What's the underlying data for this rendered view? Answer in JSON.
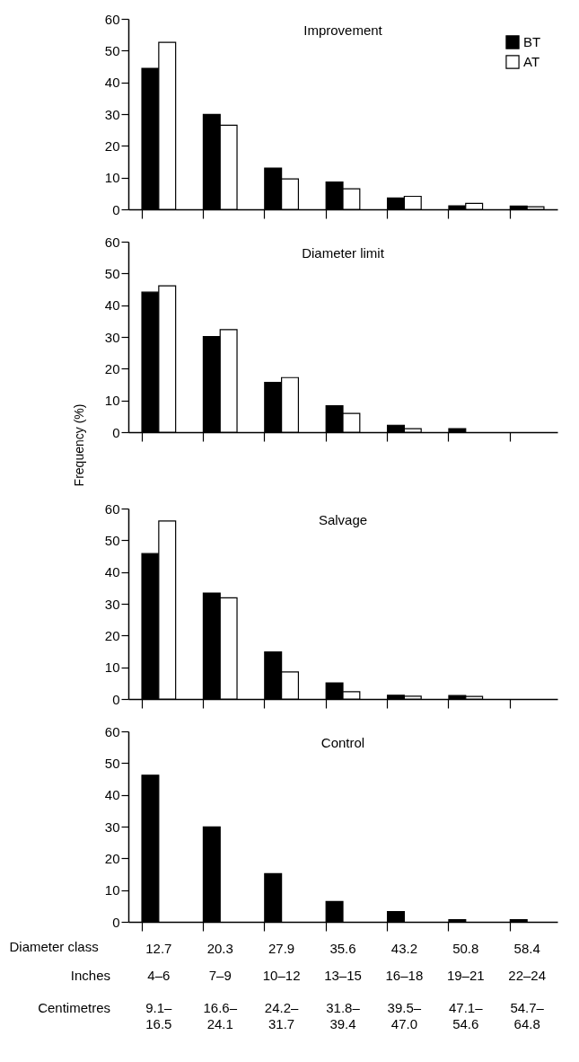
{
  "chart_data": [
    {
      "type": "bar",
      "title": "Improvement",
      "categories": [
        "12.7",
        "20.3",
        "27.9",
        "35.6",
        "43.2",
        "50.8",
        "58.4"
      ],
      "series": [
        {
          "name": "BT",
          "color": "#000000",
          "values": [
            44.4,
            29.9,
            13.0,
            8.6,
            3.6,
            1.1,
            1.0
          ]
        },
        {
          "name": "AT",
          "color": "#ffffff",
          "values": [
            52.6,
            26.5,
            9.6,
            6.5,
            4.1,
            1.9,
            0.8
          ]
        }
      ],
      "ylim": [
        0,
        60
      ],
      "yticks": [
        0,
        10,
        20,
        30,
        40,
        50,
        60
      ],
      "legend": "top right",
      "tick_labels": "y"
    },
    {
      "type": "bar",
      "title": "Diameter limit",
      "ylabel": "Frequency (%)",
      "categories": [
        "12.7",
        "20.3",
        "27.9",
        "35.6",
        "43.2",
        "50.8",
        "58.4"
      ],
      "series": [
        {
          "color": "#000000",
          "values": [
            44.1,
            30.1,
            15.7,
            8.3,
            2.2,
            1.1,
            null
          ]
        },
        {
          "color": "#ffffff",
          "values": [
            46.1,
            32.3,
            17.2,
            5.9,
            1.1,
            null,
            null
          ]
        }
      ],
      "ylim": [
        0,
        60
      ],
      "yticks": [
        0,
        10,
        20,
        30,
        40,
        50,
        60
      ],
      "tick_labels": "y"
    },
    {
      "type": "bar",
      "title": "Salvage",
      "categories": [
        "12.7",
        "20.3",
        "27.9",
        "35.6",
        "43.2",
        "50.8",
        "58.4"
      ],
      "series": [
        {
          "color": "#000000",
          "values": [
            45.8,
            33.4,
            14.8,
            5.1,
            1.2,
            1.1,
            null
          ]
        },
        {
          "color": "#ffffff",
          "values": [
            56.1,
            31.9,
            8.5,
            2.3,
            0.9,
            0.8,
            null
          ]
        }
      ],
      "ylim": [
        0,
        60
      ],
      "yticks": [
        0,
        10,
        20,
        30,
        40,
        50,
        60
      ],
      "tick_labels": "y"
    },
    {
      "type": "bar",
      "title": "Control",
      "xlabel": "Diameter class",
      "categories": [
        "12.7",
        "20.3",
        "27.9",
        "35.6",
        "43.2",
        "50.8",
        "58.4"
      ],
      "series": [
        {
          "color": "#000000",
          "values": [
            46.2,
            29.9,
            15.2,
            6.4,
            3.2,
            0.7,
            0.7
          ]
        },
        {
          "color": "#ffffff",
          "values": [
            null,
            null,
            null,
            null,
            null,
            null,
            null
          ]
        }
      ],
      "ylim": [
        0,
        60
      ],
      "yticks": [
        0,
        10,
        20,
        30,
        40,
        50,
        60
      ],
      "annotations": [
        "Inches",
        "4–6",
        "7–9",
        "10–12",
        "13–15",
        "16–18",
        "19–21",
        "22–24",
        "Centimetres",
        "9.1– 16.5",
        "16.6– 24.1",
        "24.2– 31.7",
        "31.8– 39.4",
        "39.5– 47.0",
        "47.1– 54.6",
        "54.7– 64.8"
      ]
    }
  ]
}
